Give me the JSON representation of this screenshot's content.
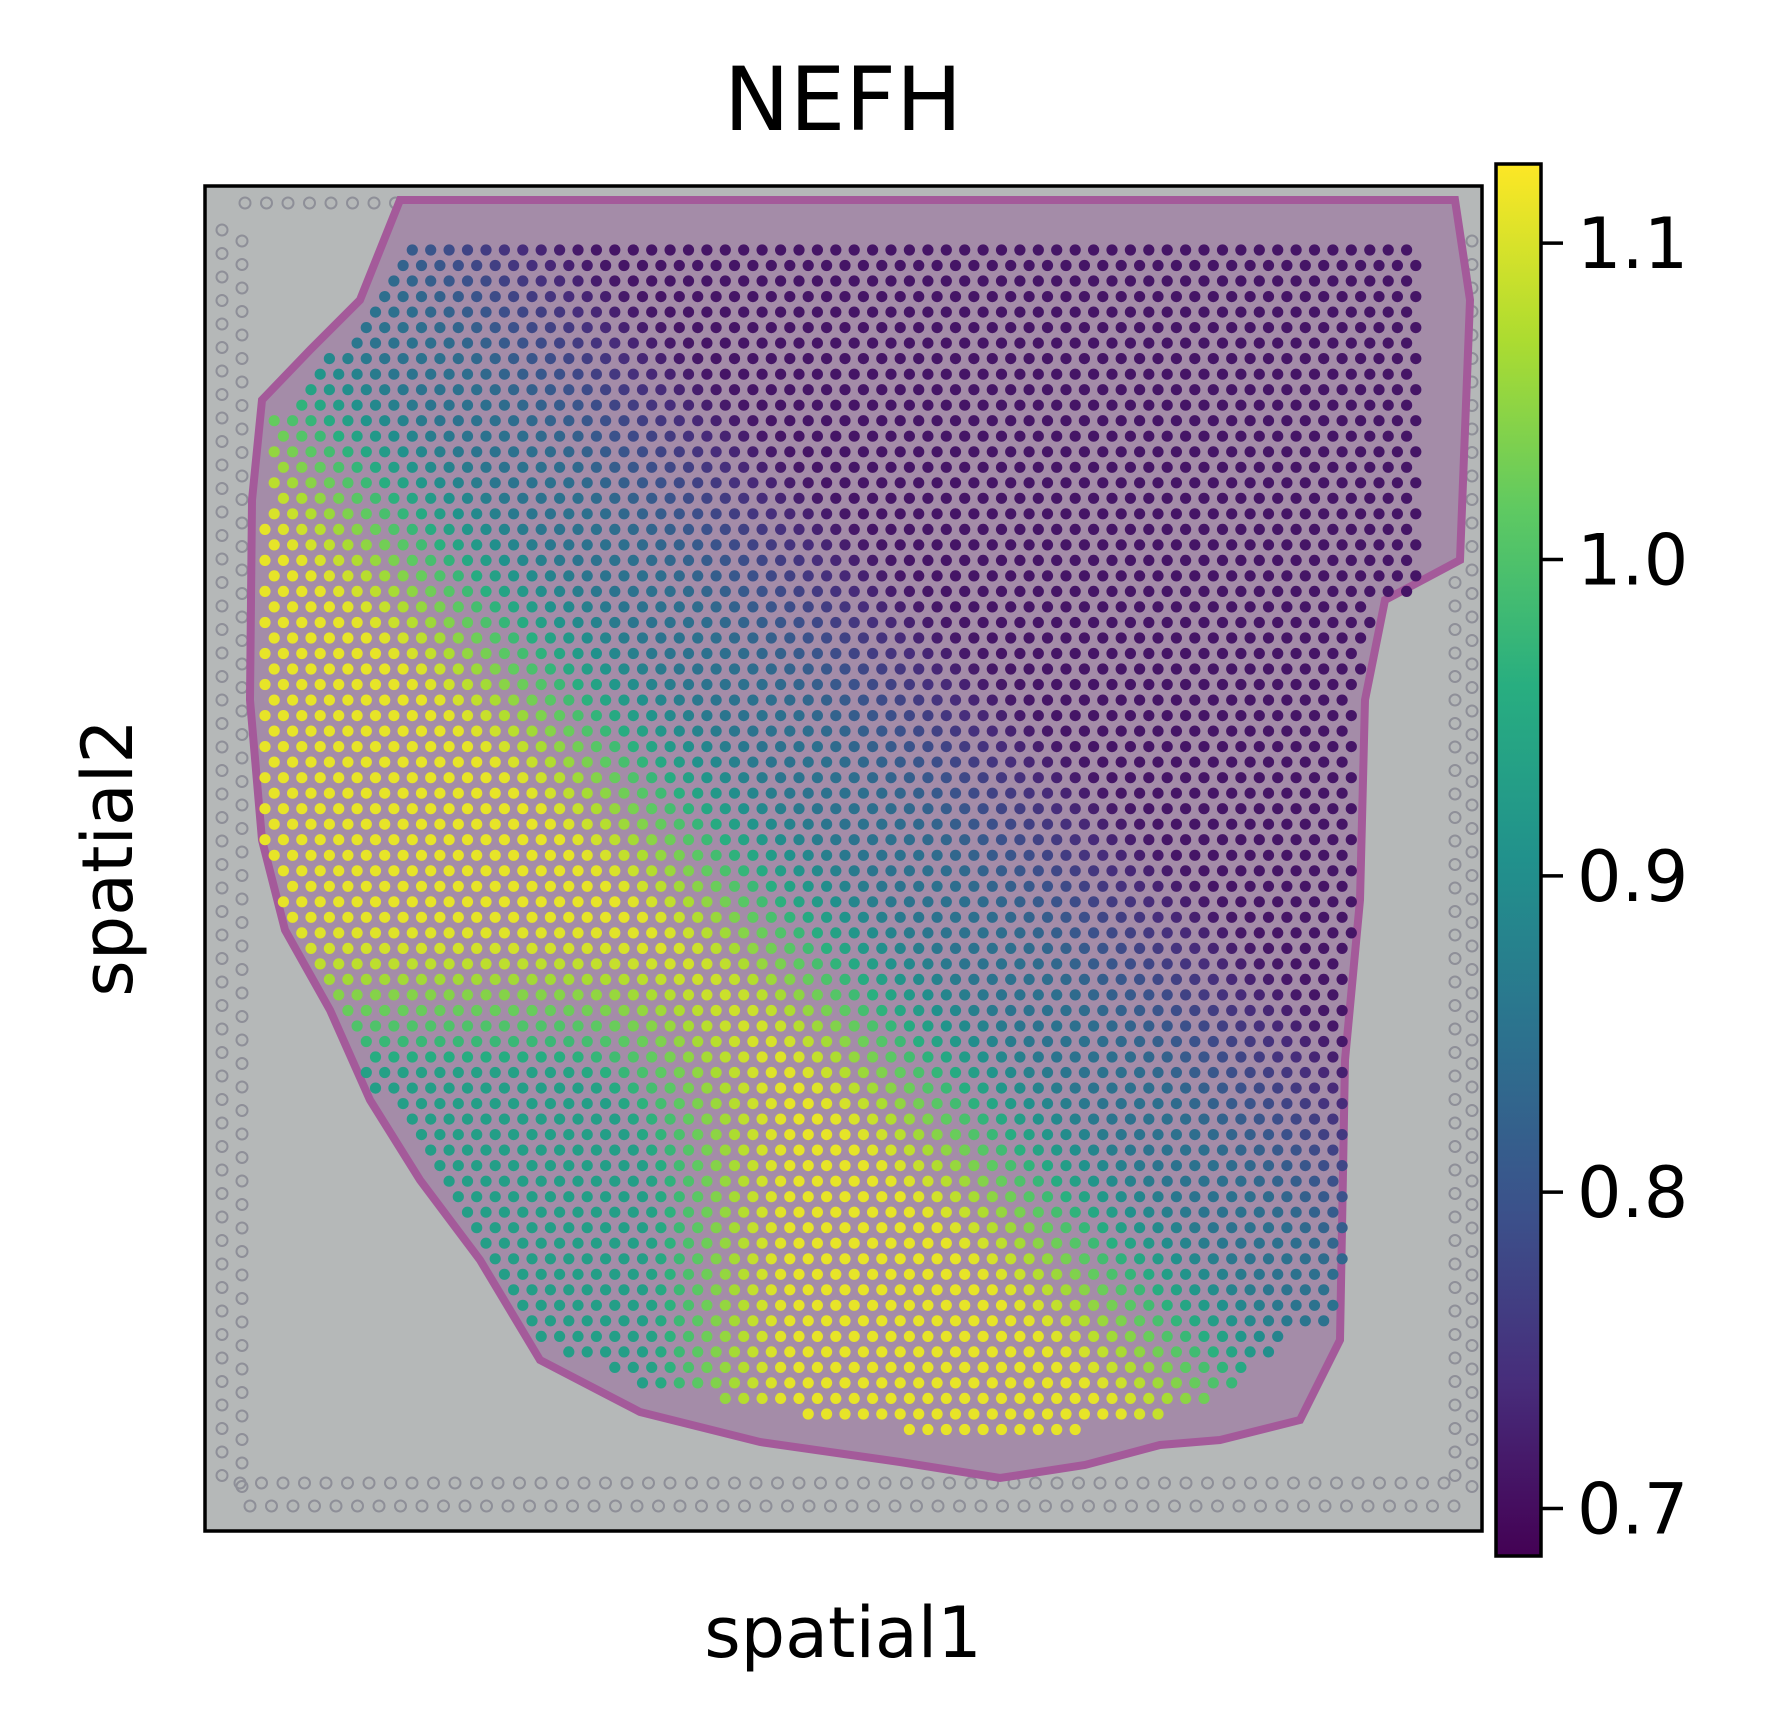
{
  "chart_data": {
    "type": "scatter",
    "title": "NEFH",
    "xlabel": "spatial1",
    "ylabel": "spatial2",
    "grid": false,
    "colormap": "viridis",
    "colorbar": {
      "range": [
        0.685,
        1.125
      ],
      "ticks": [
        0.7,
        0.8,
        0.9,
        1.0,
        1.1
      ],
      "tick_labels": [
        "0.7",
        "0.8",
        "0.9",
        "1.0",
        "1.1"
      ]
    },
    "colors": {
      "background": "#ffffff",
      "slide": "#b5b8b8",
      "tissue": "#a48ca8",
      "tissue_edge": "#a45a9a",
      "fiducial": "#8e8f98"
    },
    "spot_grid": {
      "columns": 64,
      "rows": 78
    },
    "expression_regions": [
      {
        "name": "dorsal-upper-right",
        "level": 0.71
      },
      {
        "name": "central-band",
        "level": 0.85
      },
      {
        "name": "left-and-lower-right",
        "level": 1.11
      },
      {
        "name": "lower-left-margin",
        "level": 0.93
      }
    ]
  }
}
